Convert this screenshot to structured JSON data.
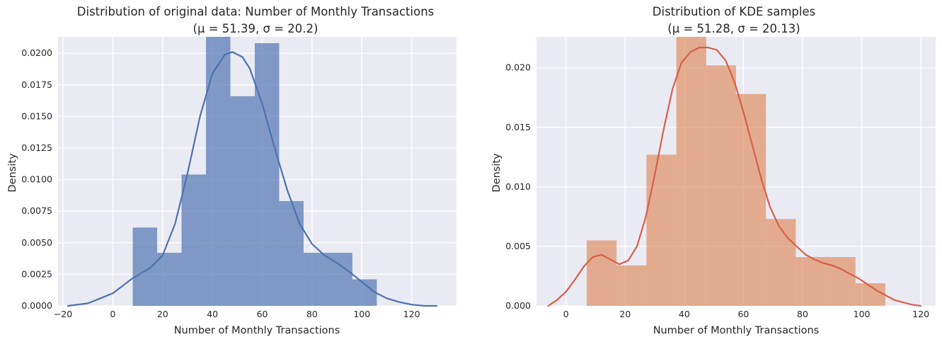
{
  "chart_data": [
    {
      "type": "bar",
      "subtype": "histogram-with-kde",
      "title": "Distribution of original data: Number of Monthly Transactions",
      "subtitle": "(μ = 51.39, σ = 20.2)",
      "xlabel": "Number of Monthly Transactions",
      "ylabel": "Density",
      "xlim": [
        -22,
        138
      ],
      "ylim": [
        0,
        0.0213
      ],
      "xticks": [
        -20,
        0,
        20,
        40,
        60,
        80,
        100,
        120
      ],
      "xtick_labels": [
        "−20",
        "0",
        "20",
        "40",
        "60",
        "80",
        "100",
        "120"
      ],
      "yticks": [
        0,
        0.0025,
        0.005,
        0.0075,
        0.01,
        0.0125,
        0.015,
        0.0175,
        0.02
      ],
      "ytick_labels": [
        "0.0000",
        "0.0025",
        "0.0050",
        "0.0075",
        "0.0100",
        "0.0125",
        "0.0150",
        "0.0175",
        "0.0200"
      ],
      "bin_edges": [
        8,
        17.8,
        27.6,
        37.4,
        47.2,
        57,
        66.8,
        76.6,
        86.4,
        96.2,
        106
      ],
      "values": [
        0.0062,
        0.0042,
        0.0104,
        0.0213,
        0.0166,
        0.0208,
        0.0083,
        0.0042,
        0.0042,
        0.0021
      ],
      "bar_color": "#4c72b0",
      "kde": {
        "x": [
          -18,
          -10,
          0,
          8,
          15,
          20,
          25,
          30,
          35,
          40,
          45,
          48,
          52,
          55,
          60,
          65,
          70,
          75,
          80,
          85,
          90,
          95,
          100,
          105,
          110,
          115,
          120,
          125,
          130
        ],
        "y": [
          0.0,
          0.0002,
          0.001,
          0.0022,
          0.003,
          0.004,
          0.0065,
          0.0105,
          0.015,
          0.0184,
          0.0199,
          0.0201,
          0.0197,
          0.0188,
          0.016,
          0.0125,
          0.0092,
          0.0065,
          0.0049,
          0.004,
          0.0034,
          0.0027,
          0.0019,
          0.0011,
          0.0006,
          0.0003,
          0.0001,
          0.0,
          0.0
        ],
        "color": "#4c72b0"
      },
      "grid": true
    },
    {
      "type": "bar",
      "subtype": "histogram-with-kde",
      "title": "Distribution of KDE samples",
      "subtitle": "(μ = 51.28, σ = 20.13)",
      "xlabel": "Number of Monthly Transactions",
      "ylabel": "Density",
      "xlim": [
        -10,
        125
      ],
      "ylim": [
        0,
        0.0226
      ],
      "xticks": [
        0,
        20,
        40,
        60,
        80,
        100,
        120
      ],
      "xtick_labels": [
        "0",
        "20",
        "40",
        "60",
        "80",
        "100",
        "120"
      ],
      "yticks": [
        0,
        0.005,
        0.01,
        0.015,
        0.02
      ],
      "ytick_labels": [
        "0.000",
        "0.005",
        "0.010",
        "0.015",
        "0.020"
      ],
      "bin_edges": [
        7,
        17.1,
        27.2,
        37.3,
        47.4,
        57.5,
        67.6,
        77.7,
        87.8,
        97.9,
        108
      ],
      "values": [
        0.0055,
        0.0034,
        0.0127,
        0.0226,
        0.0202,
        0.0178,
        0.0073,
        0.0041,
        0.0041,
        0.0019
      ],
      "bar_color": "#dd8452",
      "kde": {
        "x": [
          -6,
          -3,
          0,
          3,
          6,
          9,
          12,
          15,
          18,
          21,
          24,
          27,
          30,
          33,
          36,
          39,
          42,
          45,
          48,
          51,
          54,
          57,
          60,
          63,
          66,
          69,
          72,
          75,
          78,
          81,
          84,
          87,
          90,
          93,
          96,
          99,
          102,
          105,
          108,
          111,
          114,
          117,
          120
        ],
        "y": [
          0.0,
          0.0005,
          0.0012,
          0.0022,
          0.0033,
          0.0041,
          0.0043,
          0.0039,
          0.0035,
          0.0038,
          0.005,
          0.0075,
          0.011,
          0.0148,
          0.0182,
          0.0204,
          0.0213,
          0.0217,
          0.0217,
          0.0215,
          0.0206,
          0.0188,
          0.0163,
          0.0135,
          0.0107,
          0.0083,
          0.0067,
          0.0057,
          0.005,
          0.0043,
          0.0039,
          0.0036,
          0.0034,
          0.0031,
          0.0027,
          0.0023,
          0.0018,
          0.0013,
          0.0009,
          0.0005,
          0.0003,
          0.0001,
          0.0
        ],
        "color": "#d65f4a"
      },
      "grid": true
    }
  ]
}
